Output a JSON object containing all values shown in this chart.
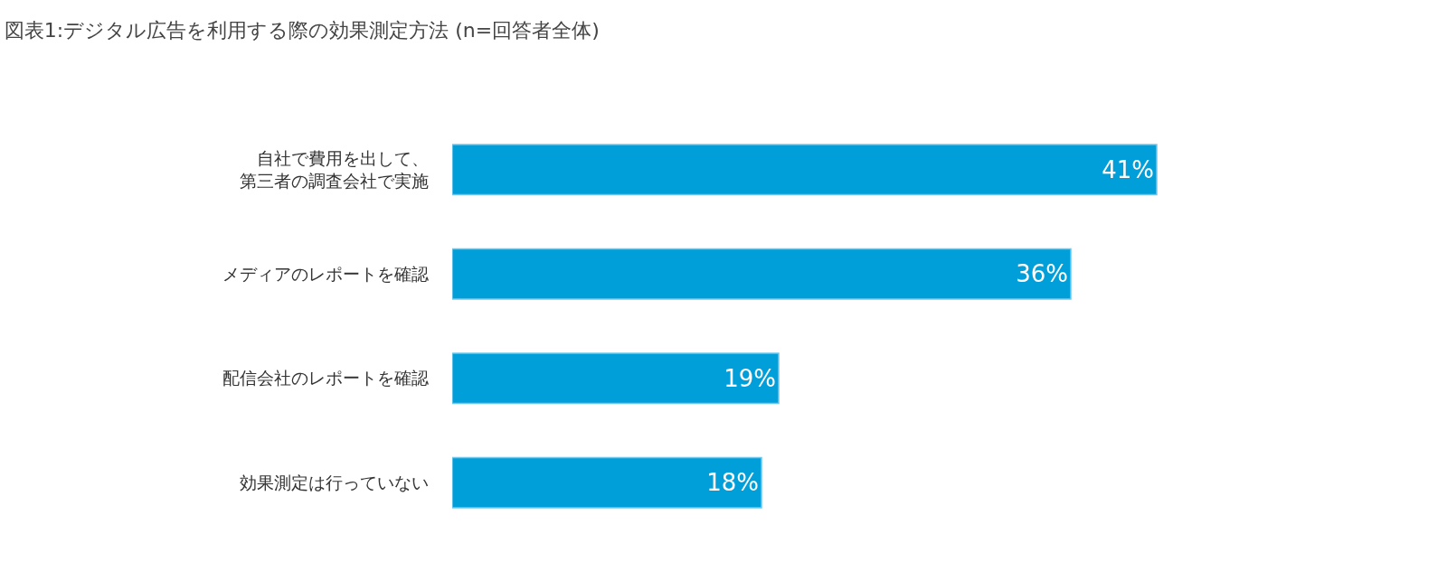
{
  "chart_data": {
    "type": "bar",
    "orientation": "horizontal",
    "title": "図表1:デジタル広告を利用する際の効果測定方法 (n=回答者全体)",
    "categories": [
      "自社で費用を出して、第三者の調査会社で実施",
      "メディアのレポートを確認",
      "配信会社のレポートを確認",
      "効果測定は行っていない"
    ],
    "values": [
      41,
      36,
      19,
      18
    ],
    "value_labels": [
      "41%",
      "36%",
      "19%",
      "18%"
    ],
    "color": "#009fd9"
  }
}
